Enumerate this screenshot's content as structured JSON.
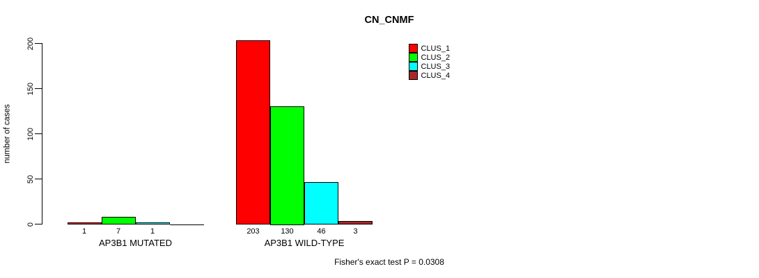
{
  "chart_data": {
    "type": "bar",
    "title": "CN_CNMF",
    "ylabel": "number of cases",
    "xlabel": "",
    "ylim": [
      0,
      200
    ],
    "yticks": [
      0,
      50,
      100,
      150,
      200
    ],
    "grid": false,
    "legend_position": "outside-right-top",
    "legend": [
      {
        "label": "CLUS_1",
        "color": "#FF0000"
      },
      {
        "label": "CLUS_2",
        "color": "#00FF00"
      },
      {
        "label": "CLUS_3",
        "color": "#00FFFF"
      },
      {
        "label": "CLUS_4",
        "color": "#A52A2A"
      }
    ],
    "colors": [
      "#FF0000",
      "#00FF00",
      "#00FFFF",
      "#A52A2A"
    ],
    "groups": [
      {
        "label": "AP3B1 MUTATED",
        "values": [
          1,
          7,
          1,
          0
        ],
        "value_labels": [
          "1",
          "7",
          "1",
          ""
        ]
      },
      {
        "label": "AP3B1 WILD-TYPE",
        "values": [
          203,
          130,
          46,
          3
        ],
        "value_labels": [
          "203",
          "130",
          "46",
          "3"
        ]
      }
    ],
    "footnote": "Fisher's exact test P = 0.0308"
  }
}
